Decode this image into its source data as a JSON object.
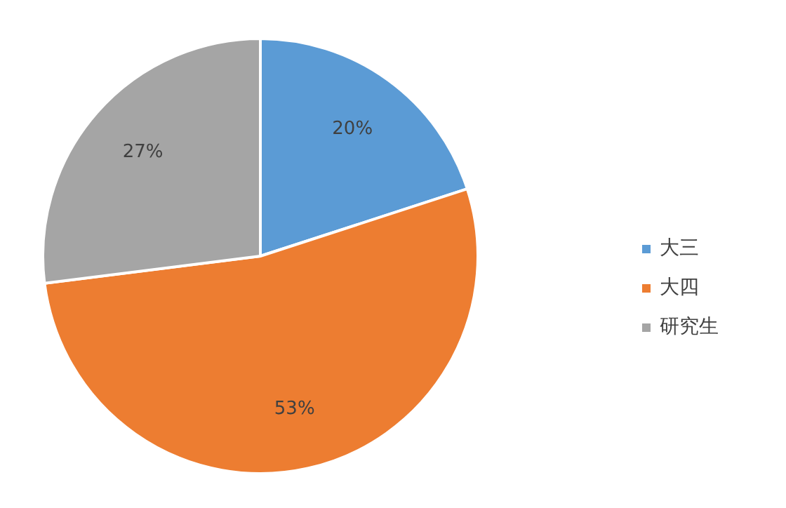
{
  "chart_data": {
    "type": "pie",
    "categories": [
      "大三",
      "大四",
      "研究生"
    ],
    "values": [
      20,
      53,
      27
    ],
    "colors": [
      "#5b9bd5",
      "#ed7d31",
      "#a5a5a5"
    ],
    "value_labels": [
      "20%",
      "53%",
      "27%"
    ],
    "legend": "right"
  }
}
